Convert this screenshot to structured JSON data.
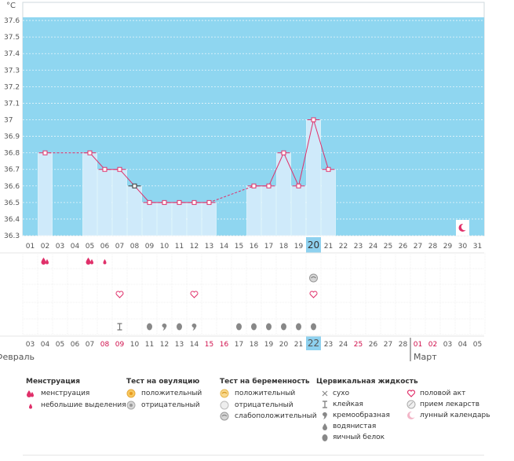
{
  "chart_data": {
    "type": "line",
    "unit": "°C",
    "title": "",
    "ylim": [
      36.3,
      37.7
    ],
    "yticks": [
      "36.3",
      "36.4",
      "36.5",
      "36.6",
      "36.7",
      "36.8",
      "36.9",
      "37",
      "37.1",
      "37.2",
      "37.3",
      "37.4",
      "37.5",
      "37.6"
    ],
    "cycle_days": [
      "01",
      "02",
      "03",
      "04",
      "05",
      "06",
      "07",
      "08",
      "09",
      "10",
      "11",
      "12",
      "13",
      "14",
      "15",
      "16",
      "17",
      "18",
      "19",
      "20",
      "21",
      "22",
      "23",
      "24",
      "25",
      "26",
      "27",
      "28",
      "29",
      "30",
      "31"
    ],
    "highlight_day": "20",
    "temperatures": [
      null,
      36.8,
      null,
      null,
      36.8,
      36.7,
      36.7,
      36.6,
      36.5,
      36.5,
      36.5,
      36.5,
      36.5,
      null,
      null,
      36.6,
      36.6,
      36.8,
      36.6,
      37.0,
      36.7,
      null,
      null,
      null,
      null,
      null,
      null,
      null,
      null,
      null,
      null
    ],
    "dashed_gaps": [
      [
        2,
        5
      ],
      [
        13,
        16
      ]
    ],
    "menstruation_days": [
      2,
      5
    ],
    "light_spotting_days": [
      6
    ],
    "pregnancy_test_weak_days": [
      20
    ],
    "intercourse_days": [
      7,
      12,
      20
    ],
    "moon_day": 30,
    "cervical_fluid": [
      {
        "day": 7,
        "type": "sticky"
      },
      {
        "day": 9,
        "type": "egg-white"
      },
      {
        "day": 10,
        "type": "creamy"
      },
      {
        "day": 11,
        "type": "egg-white"
      },
      {
        "day": 12,
        "type": "creamy"
      },
      {
        "day": 15,
        "type": "egg-white"
      },
      {
        "day": 16,
        "type": "egg-white"
      },
      {
        "day": 17,
        "type": "egg-white"
      },
      {
        "day": 18,
        "type": "egg-white"
      },
      {
        "day": 19,
        "type": "egg-white"
      },
      {
        "day": 20,
        "type": "egg-white"
      }
    ],
    "dates": [
      "03",
      "04",
      "05",
      "06",
      "07",
      "08",
      "09",
      "10",
      "11",
      "12",
      "13",
      "14",
      "15",
      "16",
      "17",
      "18",
      "19",
      "20",
      "21",
      "22",
      "23",
      "24",
      "25",
      "26",
      "27",
      "28",
      "01",
      "02",
      "03",
      "04",
      "05"
    ],
    "weekend_dates": [
      5,
      6,
      12,
      13,
      22,
      26,
      27
    ],
    "highlight_date_index": 19,
    "months": [
      "Февраль",
      "Март"
    ],
    "colors": {
      "sky": "#8fd6f0",
      "bar": "#cfeafa",
      "bar_dark": "#8fd6f0",
      "line": "#e0306a",
      "highlight": "#8ed1ef"
    }
  },
  "legend": {
    "menstruation": {
      "title": "Менструация",
      "items": [
        "менструация",
        "небольшие выделения"
      ]
    },
    "ovulation_test": {
      "title": "Тест на овуляцию",
      "items": [
        "положительный",
        "отрицательный"
      ]
    },
    "pregnancy_test": {
      "title": "Тест на беременность",
      "items": [
        "положительный",
        "отрицательный",
        "слабоположительный"
      ]
    },
    "cervical": {
      "title": "Цервикальная жидкость",
      "items": [
        "сухо",
        "клейкая",
        "кремообразная",
        "водянистая",
        "яичный белок"
      ]
    },
    "other": {
      "items": [
        "половой акт",
        "прием лекарств",
        "лунный календарь"
      ]
    }
  }
}
